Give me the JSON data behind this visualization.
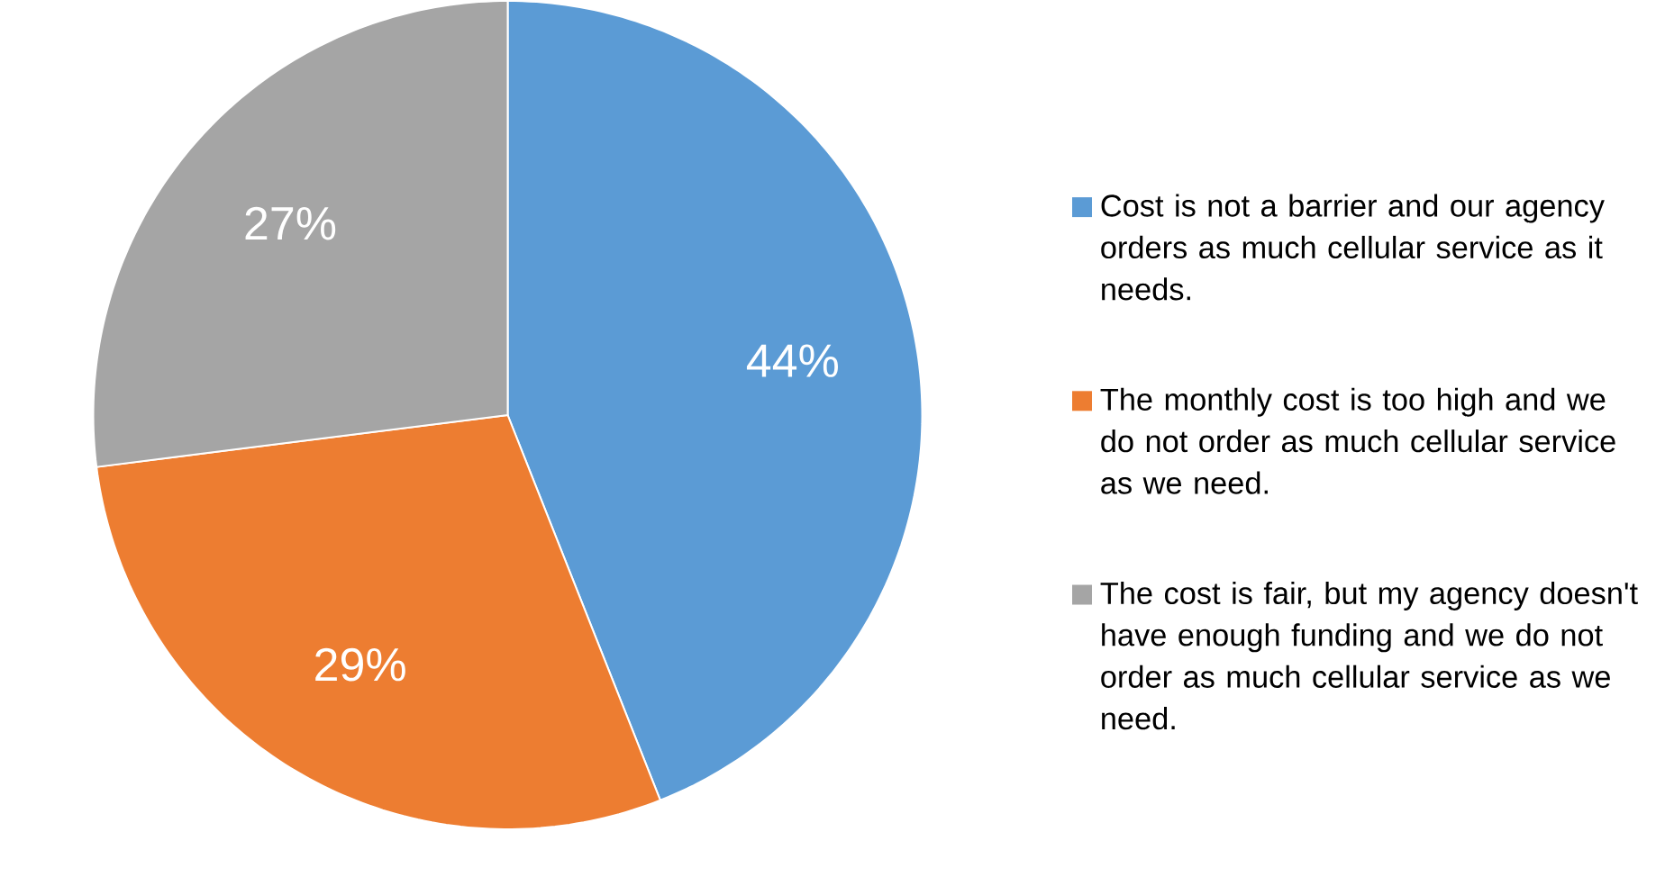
{
  "chart_data": {
    "type": "pie",
    "categories": [
      "Cost is not a barrier and our agency orders as much cellular service as it needs.",
      "The monthly cost is too high and we do not order as much cellular service as we need.",
      "The cost is fair, but my agency doesn't have enough funding and we do not order as much cellular service as we need."
    ],
    "values": [
      44,
      29,
      27
    ],
    "colors": [
      "#5b9bd5",
      "#ed7d31",
      "#a5a5a5"
    ],
    "value_labels": [
      "44%",
      "29%",
      "27%"
    ],
    "legend": "right"
  }
}
